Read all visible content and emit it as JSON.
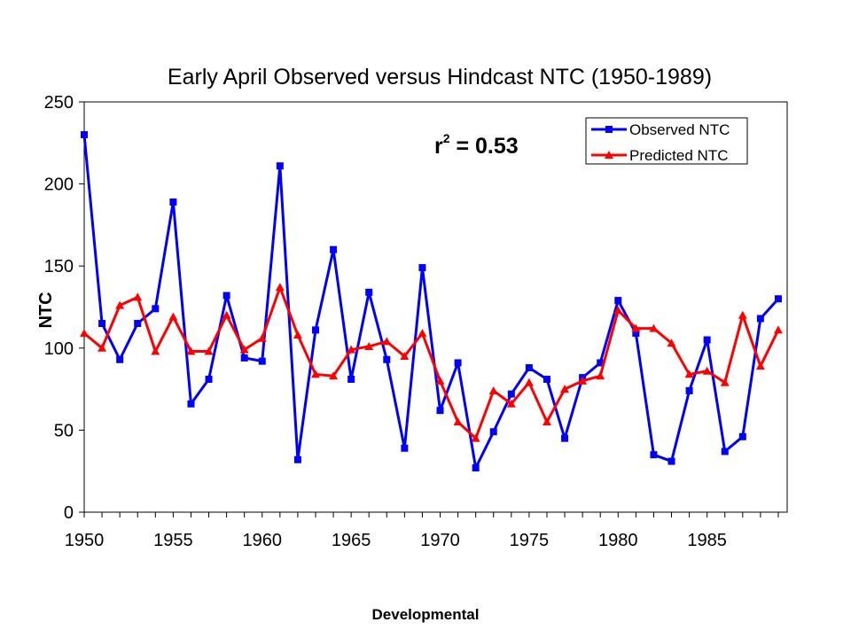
{
  "chart_data": {
    "type": "line",
    "title": "Early April Observed versus Hindcast NTC (1950-1989)",
    "xlabel": "",
    "ylabel": "NTC",
    "xlim": [
      1950,
      1989
    ],
    "ylim": [
      0,
      250
    ],
    "x_ticks": [
      1950,
      1955,
      1960,
      1965,
      1970,
      1975,
      1980,
      1985
    ],
    "y_ticks": [
      0,
      50,
      100,
      150,
      200,
      250
    ],
    "grid": false,
    "legend_position": "top-right",
    "x": [
      1950,
      1951,
      1952,
      1953,
      1954,
      1955,
      1956,
      1957,
      1958,
      1959,
      1960,
      1961,
      1962,
      1963,
      1964,
      1965,
      1966,
      1967,
      1968,
      1969,
      1970,
      1971,
      1972,
      1973,
      1974,
      1975,
      1976,
      1977,
      1978,
      1979,
      1980,
      1981,
      1982,
      1983,
      1984,
      1985,
      1986,
      1987,
      1988,
      1989
    ],
    "series": [
      {
        "name": "Observed NTC",
        "color": "#0000ff",
        "marker": "square",
        "values": [
          230,
          115,
          93,
          115,
          124,
          189,
          66,
          81,
          132,
          94,
          92,
          211,
          32,
          111,
          160,
          81,
          134,
          93,
          39,
          149,
          62,
          91,
          27,
          49,
          72,
          88,
          81,
          45,
          82,
          91,
          129,
          109,
          35,
          31,
          74,
          105,
          37,
          46,
          118,
          130
        ]
      },
      {
        "name": "Predicted NTC",
        "color": "#ff0000",
        "marker": "triangle",
        "values": [
          109,
          100,
          126,
          131,
          98,
          119,
          98,
          98,
          120,
          99,
          106,
          137,
          108,
          84,
          83,
          99,
          101,
          104,
          95,
          109,
          80,
          55,
          45,
          74,
          66,
          79,
          55,
          75,
          80,
          83,
          123,
          112,
          112,
          103,
          84,
          86,
          79,
          120,
          89,
          111
        ]
      }
    ],
    "annotation": {
      "base": "r",
      "superscript": "2",
      "rest": " = 0.53"
    }
  },
  "footer_label": "Developmental"
}
